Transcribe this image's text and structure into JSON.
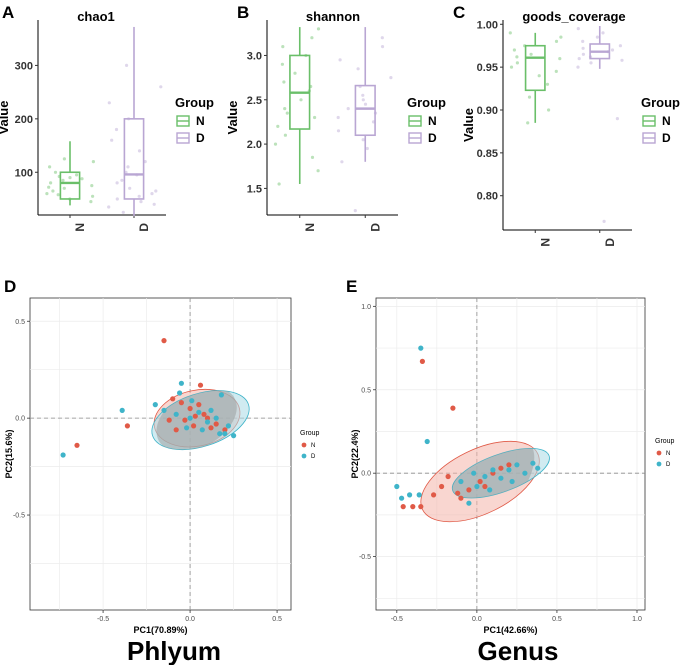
{
  "figure": {
    "letters": {
      "A": "A",
      "B": "B",
      "C": "C",
      "D": "D",
      "E": "E"
    },
    "captions": {
      "phylum": "Phlyum",
      "genus": "Genus"
    }
  },
  "colors": {
    "box_N": "#6abf69",
    "box_D": "#b9a6d3",
    "pca_N": "#e05a47",
    "pca_D": "#3fb4c9",
    "ellipse_N": "#f4b5aa",
    "ellipse_D": "#a9dbe6",
    "overlap": "#9aa0a0"
  },
  "chart_data": [
    {
      "id": "A",
      "type": "box",
      "title": "chao1",
      "ylabel": "Value",
      "categories": [
        "N",
        "D"
      ],
      "ylim": [
        20,
        385
      ],
      "yticks": [
        100,
        200,
        300
      ],
      "boxes": [
        {
          "group": "N",
          "min": 38,
          "q1": 50,
          "median": 80,
          "q3": 100,
          "max": 158
        },
        {
          "group": "D",
          "min": 18,
          "q1": 50,
          "median": 96,
          "q3": 200,
          "max": 372
        }
      ],
      "points": {
        "N": [
          45,
          55,
          60,
          70,
          75,
          80,
          85,
          90,
          95,
          100,
          110,
          120,
          125,
          65,
          50,
          58,
          72,
          88,
          92
        ],
        "D": [
          25,
          35,
          40,
          50,
          60,
          70,
          80,
          95,
          100,
          120,
          140,
          160,
          180,
          200,
          230,
          260,
          300,
          45,
          55,
          65,
          85,
          110
        ]
      },
      "legend": {
        "title": "Group",
        "items": [
          "N",
          "D"
        ]
      }
    },
    {
      "id": "B",
      "type": "box",
      "title": "shannon",
      "ylabel": "Value",
      "categories": [
        "N",
        "D"
      ],
      "ylim": [
        1.2,
        3.4
      ],
      "yticks": [
        1.5,
        2.0,
        2.5,
        3.0
      ],
      "boxes": [
        {
          "group": "N",
          "min": 1.55,
          "q1": 2.17,
          "median": 2.58,
          "q3": 3.0,
          "max": 3.32
        },
        {
          "group": "D",
          "min": 1.8,
          "q1": 2.1,
          "median": 2.4,
          "q3": 2.66,
          "max": 3.32
        }
      ],
      "points": {
        "N": [
          1.55,
          1.7,
          1.85,
          2.0,
          2.1,
          2.2,
          2.3,
          2.4,
          2.5,
          2.6,
          2.7,
          2.8,
          2.9,
          3.0,
          3.1,
          3.2,
          3.3,
          2.35,
          2.65
        ],
        "D": [
          1.25,
          1.8,
          1.95,
          2.05,
          2.15,
          2.25,
          2.35,
          2.45,
          2.55,
          2.65,
          2.75,
          2.85,
          2.95,
          3.1,
          3.2,
          2.3,
          2.5,
          2.4
        ]
      },
      "legend": {
        "title": "Group",
        "items": [
          "N",
          "D"
        ]
      }
    },
    {
      "id": "C",
      "type": "box",
      "title": "goods_coverage",
      "ylabel": "Value",
      "categories": [
        "N",
        "D"
      ],
      "ylim": [
        0.76,
        1.005
      ],
      "yticks": [
        0.8,
        0.85,
        0.9,
        0.95,
        1.0
      ],
      "boxes": [
        {
          "group": "N",
          "min": 0.885,
          "q1": 0.923,
          "median": 0.961,
          "q3": 0.975,
          "max": 0.99
        },
        {
          "group": "D",
          "min": 0.948,
          "q1": 0.96,
          "median": 0.968,
          "q3": 0.977,
          "max": 0.998
        }
      ],
      "points": {
        "N": [
          0.885,
          0.9,
          0.915,
          0.93,
          0.94,
          0.95,
          0.955,
          0.96,
          0.965,
          0.97,
          0.975,
          0.98,
          0.985,
          0.99,
          0.945,
          0.962
        ],
        "D": [
          0.77,
          0.89,
          0.95,
          0.955,
          0.96,
          0.965,
          0.97,
          0.972,
          0.975,
          0.98,
          0.985,
          0.99,
          0.995,
          0.962,
          0.968,
          0.958
        ]
      },
      "legend": {
        "title": "Group",
        "items": [
          "N",
          "D"
        ]
      }
    },
    {
      "id": "D",
      "type": "scatter",
      "xlabel": "PC1(70.89%)",
      "ylabel": "PC2(15.6%)",
      "xlim": [
        -0.92,
        0.58
      ],
      "ylim": [
        -0.99,
        0.62
      ],
      "xticks": [
        -0.5,
        0.0,
        0.5
      ],
      "xtick_labels": [
        "-0.5",
        "0.0",
        "0.5"
      ],
      "yticks": [
        -0.5,
        0.0,
        0.5
      ],
      "ytick_labels": [
        "-0.5",
        "0.0",
        "0.5"
      ],
      "ellipses": [
        {
          "group": "N",
          "cx": 0.04,
          "cy": 0.0,
          "rx": 0.25,
          "ry": 0.09,
          "angle": -12
        },
        {
          "group": "D",
          "cx": 0.06,
          "cy": -0.01,
          "rx": 0.29,
          "ry": 0.085,
          "angle": -18
        }
      ],
      "series": [
        {
          "name": "N",
          "points": [
            [
              -0.15,
              0.4
            ],
            [
              -0.65,
              -0.14
            ],
            [
              -0.36,
              -0.04
            ],
            [
              -0.1,
              0.1
            ],
            [
              -0.05,
              0.08
            ],
            [
              0.0,
              0.05
            ],
            [
              0.05,
              0.07
            ],
            [
              0.08,
              0.02
            ],
            [
              -0.12,
              -0.01
            ],
            [
              0.12,
              -0.05
            ],
            [
              0.15,
              -0.03
            ],
            [
              0.02,
              -0.04
            ],
            [
              -0.03,
              -0.01
            ],
            [
              0.2,
              -0.06
            ],
            [
              0.06,
              0.17
            ],
            [
              0.1,
              0.0
            ],
            [
              -0.08,
              -0.06
            ],
            [
              0.03,
              0.01
            ]
          ]
        },
        {
          "name": "D",
          "points": [
            [
              -0.73,
              -0.19
            ],
            [
              -0.39,
              0.04
            ],
            [
              -0.2,
              0.07
            ],
            [
              -0.05,
              0.18
            ],
            [
              -0.08,
              0.02
            ],
            [
              0.0,
              0.0
            ],
            [
              0.05,
              0.03
            ],
            [
              0.1,
              -0.02
            ],
            [
              0.15,
              0.0
            ],
            [
              0.2,
              -0.08
            ],
            [
              0.25,
              -0.09
            ],
            [
              0.18,
              0.12
            ],
            [
              -0.15,
              0.04
            ],
            [
              0.07,
              -0.06
            ],
            [
              0.22,
              -0.04
            ],
            [
              0.01,
              0.09
            ],
            [
              -0.02,
              -0.05
            ],
            [
              0.12,
              0.04
            ],
            [
              0.17,
              -0.08
            ],
            [
              -0.06,
              0.13
            ]
          ]
        }
      ],
      "legend": {
        "title": "Group",
        "items": [
          "N",
          "D"
        ]
      }
    },
    {
      "id": "E",
      "type": "scatter",
      "xlabel": "PC1(42.66%)",
      "ylabel": "PC2(22.4%)",
      "xlim": [
        -0.63,
        1.05
      ],
      "ylim": [
        -0.82,
        1.05
      ],
      "xticks": [
        -0.5,
        0.0,
        0.5,
        1.0
      ],
      "xtick_labels": [
        "-0.5",
        "0.0",
        "0.5",
        "1.0"
      ],
      "yticks": [
        -0.5,
        0.0,
        0.5,
        1.0
      ],
      "ytick_labels": [
        "-0.5",
        "0.0",
        "0.5",
        "1.0"
      ],
      "ellipses": [
        {
          "group": "N",
          "cx": 0.02,
          "cy": -0.05,
          "rx": 0.4,
          "ry": 0.12,
          "angle": -26
        },
        {
          "group": "D",
          "cx": 0.15,
          "cy": 0.0,
          "rx": 0.32,
          "ry": 0.07,
          "angle": -20
        }
      ],
      "series": [
        {
          "name": "N",
          "points": [
            [
              -0.34,
              0.67
            ],
            [
              -0.15,
              0.39
            ],
            [
              -0.46,
              -0.2
            ],
            [
              -0.4,
              -0.2
            ],
            [
              -0.35,
              -0.2
            ],
            [
              -0.27,
              -0.13
            ],
            [
              -0.22,
              -0.08
            ],
            [
              -0.1,
              -0.15
            ],
            [
              -0.05,
              -0.1
            ],
            [
              0.02,
              -0.05
            ],
            [
              0.1,
              0.0
            ],
            [
              0.15,
              0.03
            ],
            [
              0.2,
              0.05
            ],
            [
              -0.18,
              -0.02
            ],
            [
              0.05,
              -0.08
            ],
            [
              -0.12,
              -0.12
            ]
          ]
        },
        {
          "name": "D",
          "points": [
            [
              -0.35,
              0.75
            ],
            [
              -0.31,
              0.19
            ],
            [
              -0.5,
              -0.08
            ],
            [
              -0.47,
              -0.15
            ],
            [
              -0.42,
              -0.13
            ],
            [
              -0.36,
              -0.13
            ],
            [
              -0.1,
              -0.05
            ],
            [
              -0.05,
              -0.18
            ],
            [
              0.0,
              -0.08
            ],
            [
              0.05,
              -0.02
            ],
            [
              0.1,
              0.02
            ],
            [
              0.15,
              -0.03
            ],
            [
              0.2,
              0.02
            ],
            [
              0.25,
              0.05
            ],
            [
              0.3,
              0.0
            ],
            [
              0.35,
              0.06
            ],
            [
              0.38,
              0.03
            ],
            [
              -0.02,
              0.0
            ],
            [
              0.08,
              -0.1
            ],
            [
              0.22,
              -0.05
            ]
          ]
        }
      ],
      "legend": {
        "title": "Group",
        "items": [
          "N",
          "D"
        ]
      }
    }
  ]
}
